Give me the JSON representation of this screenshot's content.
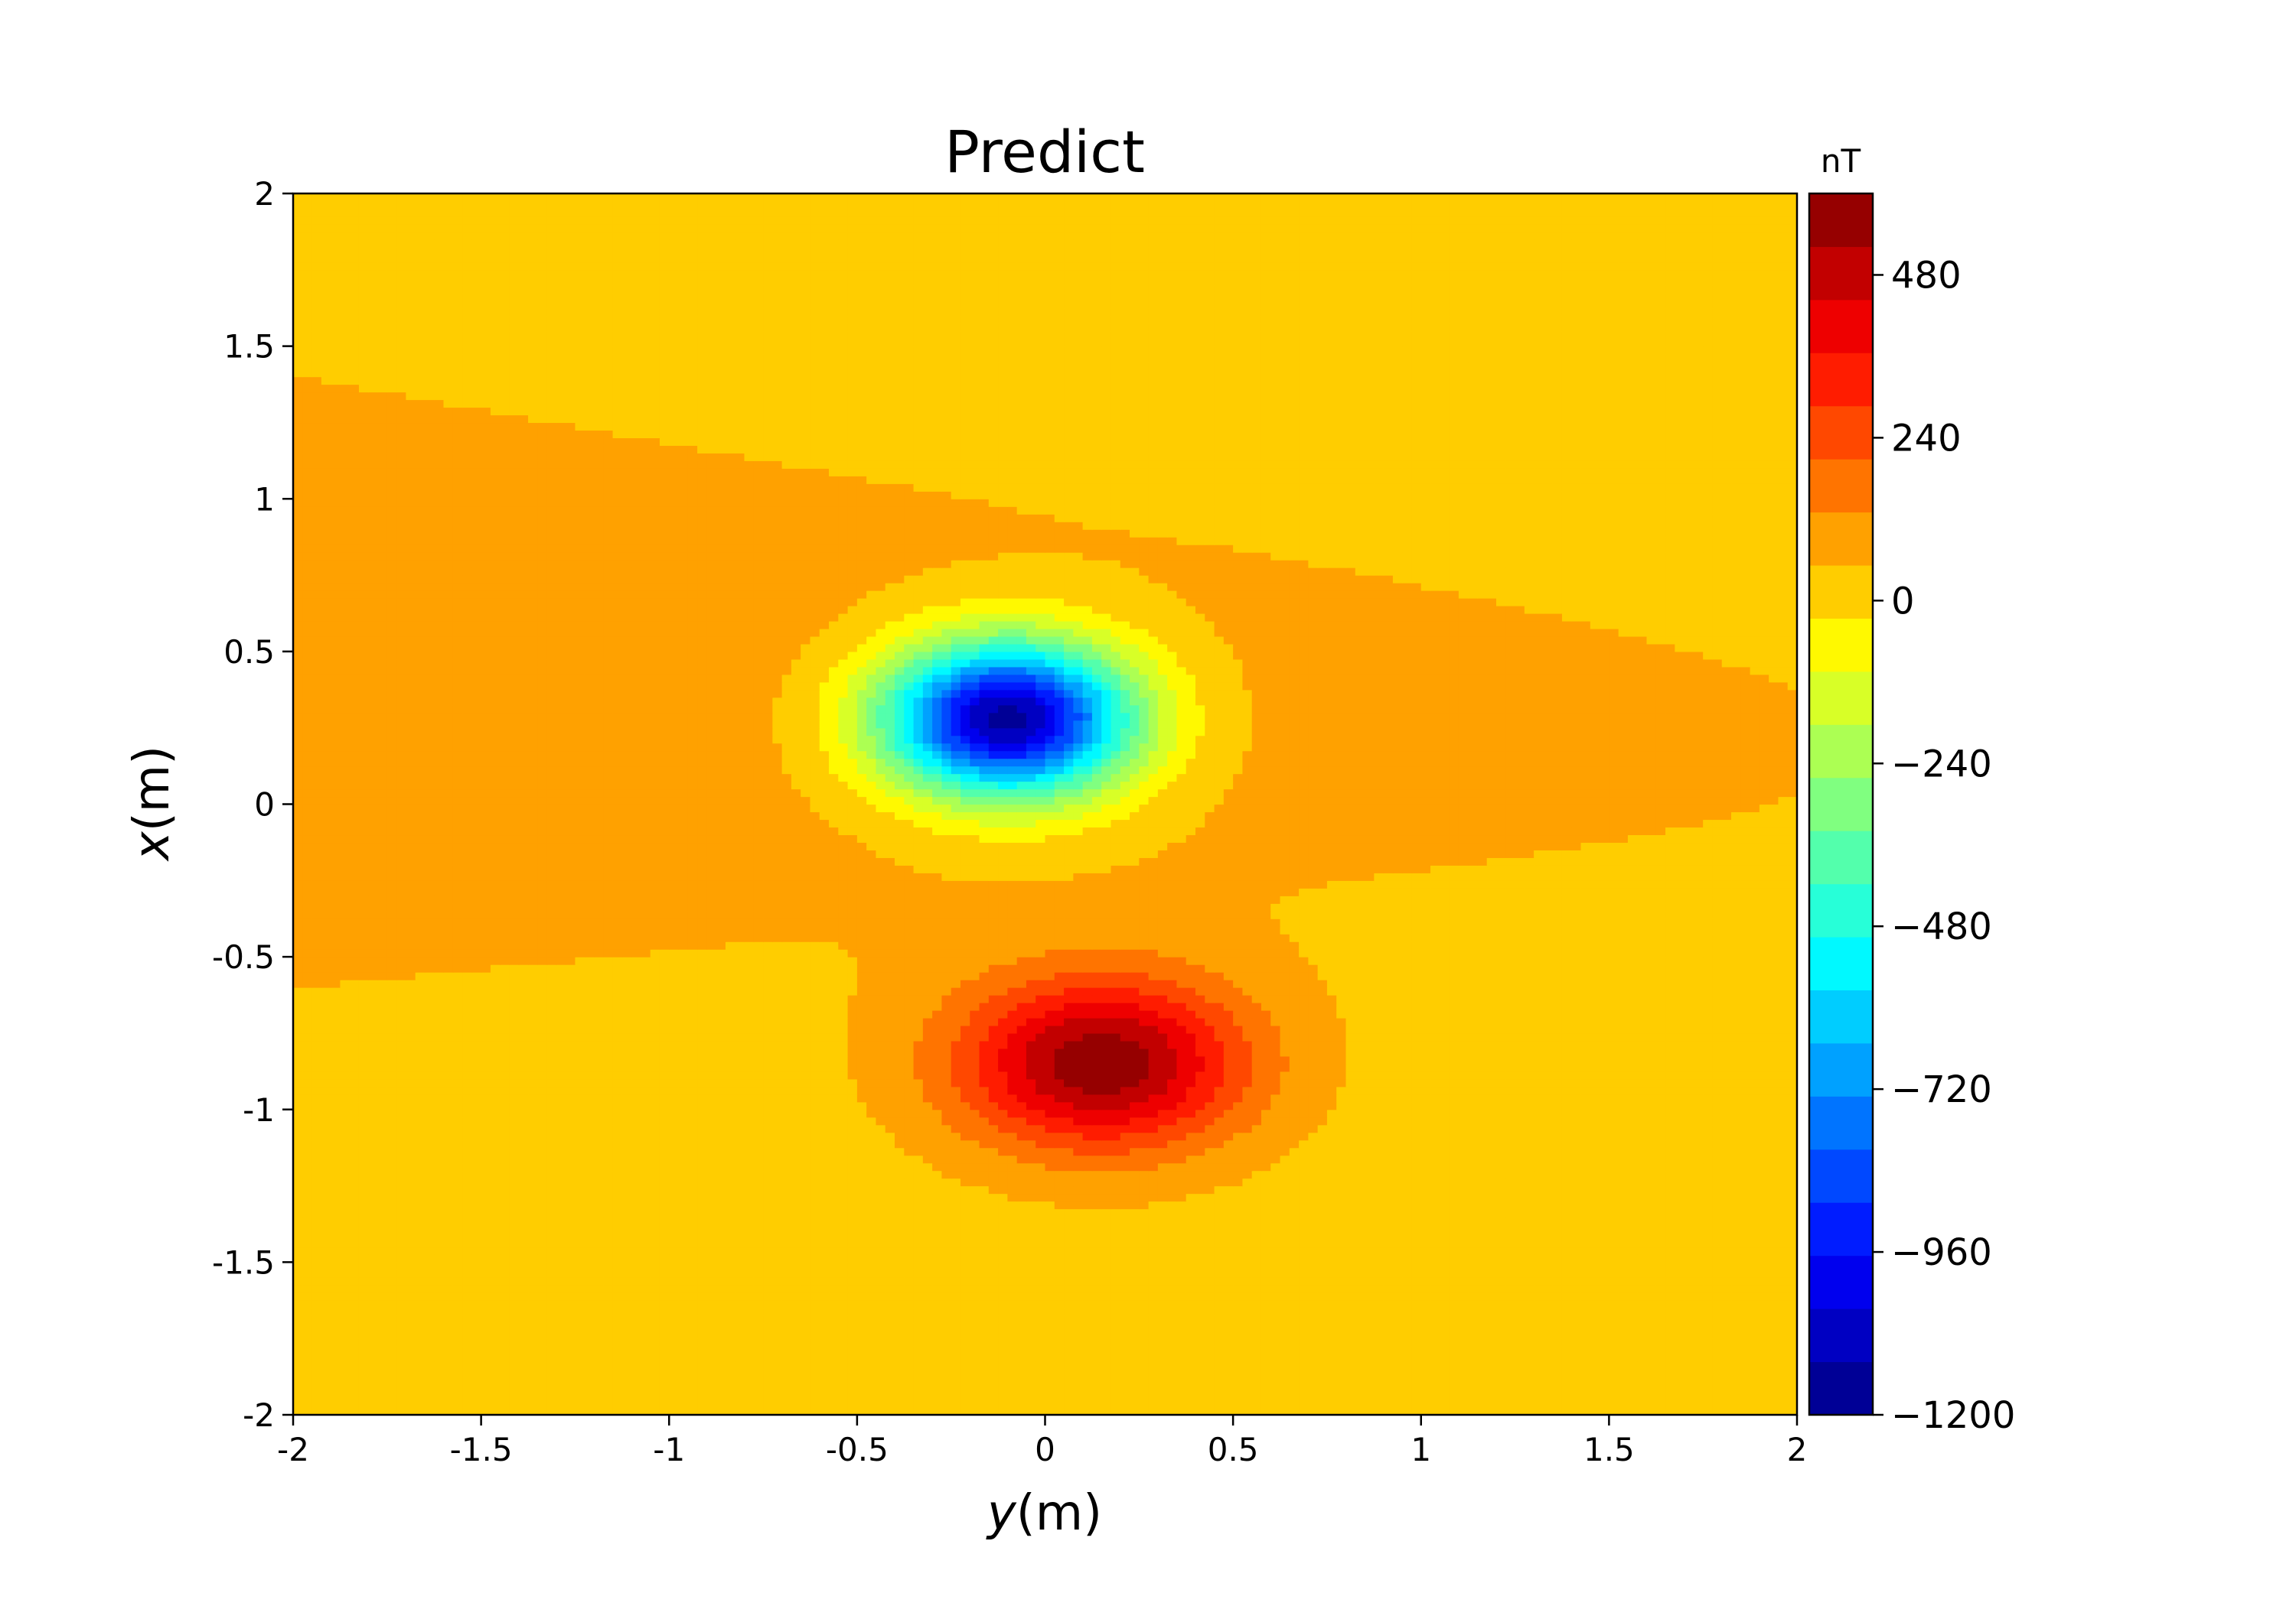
{
  "chart_data": {
    "type": "heatmap",
    "subtype": "filled-contour",
    "title": "Predict",
    "xlabel_var": "y",
    "xlabel_unit": "(m)",
    "ylabel_var": "x",
    "ylabel_unit": "(m)",
    "xlim": [
      -2,
      2
    ],
    "ylim": [
      -2,
      2
    ],
    "xticks": [
      -2,
      -1.5,
      -1,
      -0.5,
      0,
      0.5,
      1,
      1.5,
      2
    ],
    "xtick_labels": [
      "-2",
      "-1.5",
      "-1",
      "-0.5",
      "0",
      "0.5",
      "1",
      "1.5",
      "2"
    ],
    "yticks": [
      -2,
      -1.5,
      -1,
      -0.5,
      0,
      0.5,
      1,
      1.5,
      2
    ],
    "ytick_labels": [
      "-2",
      "-1.5",
      "-1",
      "-0.5",
      "0",
      "0.5",
      "1",
      "1.5",
      "2"
    ],
    "grid": false,
    "colorbar": {
      "unit": "nT",
      "range": [
        -1200,
        600
      ],
      "level_step": 80,
      "ticks": [
        480,
        240,
        0,
        -240,
        -480,
        -720,
        -960,
        -1200
      ],
      "tick_labels": [
        "480",
        "240",
        "0",
        "−240",
        "−480",
        "−720",
        "−960",
        "−1200"
      ],
      "colormap": "jet"
    },
    "sources": [
      {
        "kind": "negative",
        "y_center": -0.1,
        "x_center": 0.28,
        "sy": 0.33,
        "sx": 0.25,
        "amplitude": -1260
      },
      {
        "kind": "positive",
        "y_center": 0.15,
        "x_center": -0.85,
        "sy": 0.38,
        "sx": 0.28,
        "amplitude": 570
      }
    ],
    "background": {
      "value": 45,
      "tilt_per_unit": -0.25,
      "slope": 80
    }
  }
}
